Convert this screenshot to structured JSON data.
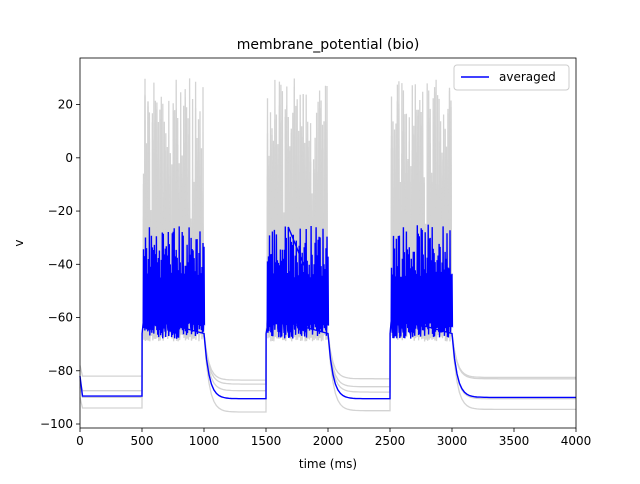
{
  "chart_data": {
    "type": "line",
    "title": "membrane_potential (bio)",
    "xlabel": "time (ms)",
    "ylabel": "v",
    "xlim": [
      0,
      4000
    ],
    "ylim": [
      -101.5,
      37.5
    ],
    "xticks": [
      0,
      500,
      1000,
      1500,
      2000,
      2500,
      3000,
      3500,
      4000
    ],
    "yticks": [
      -100,
      -80,
      -60,
      -40,
      -20,
      0,
      20
    ],
    "grid": false,
    "legend": {
      "position": "top-right",
      "entries": [
        "averaged"
      ]
    },
    "colors": {
      "averaged": "#0000ff",
      "traces": "#d3d3d3"
    },
    "stimulus_windows_ms": [
      [
        500,
        1000
      ],
      [
        1500,
        2000
      ],
      [
        2500,
        3000
      ]
    ],
    "series": [
      {
        "name": "",
        "resting_levels_mV": [
          -87.5,
          -87.5,
          -88,
          -90.5
        ]
      },
      {
        "name": "",
        "resting_levels_mV": [
          -90,
          -83.5,
          -83,
          -82.5
        ]
      },
      {
        "name": "",
        "resting_levels_mV": [
          -94,
          -95.5,
          -95,
          -94.5
        ]
      },
      {
        "name": "",
        "resting_levels_mV": [
          -82,
          -85,
          -86,
          -83
        ]
      },
      {
        "name": "averaged",
        "resting_levels_mV": [
          -89.5,
          -90.5,
          -90.5,
          -90
        ],
        "spike_peaks_mV": [
          -40,
          -26,
          -42
        ]
      }
    ],
    "spike_peak_range_mV": [
      -45,
      30
    ],
    "plateau_range_mV": [
      -66,
      -60
    ]
  }
}
